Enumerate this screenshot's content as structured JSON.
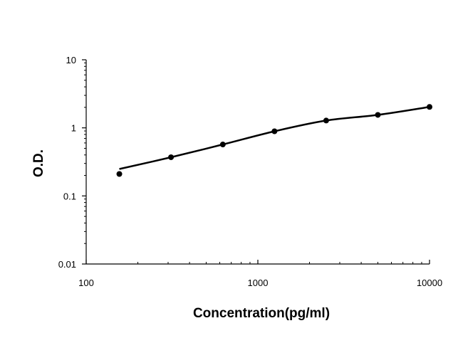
{
  "chart_data": {
    "type": "scatter",
    "title": "",
    "xlabel": "Concentration(pg/ml)",
    "ylabel": "O.D.",
    "x_scale": "log",
    "y_scale": "log",
    "xlim": [
      100,
      10000
    ],
    "ylim": [
      0.01,
      10
    ],
    "x_ticks": [
      "100",
      "1000",
      "10000"
    ],
    "y_ticks": [
      "0.01",
      "0.1",
      "1",
      "10"
    ],
    "grid": false,
    "legend": "none",
    "series": [
      {
        "x": [
          156,
          312,
          625,
          1250,
          2500,
          5000,
          10000
        ],
        "y": [
          0.21,
          0.37,
          0.57,
          0.89,
          1.28,
          1.55,
          2.03
        ],
        "fit_curve": "smooth",
        "color": "#000000"
      }
    ]
  }
}
